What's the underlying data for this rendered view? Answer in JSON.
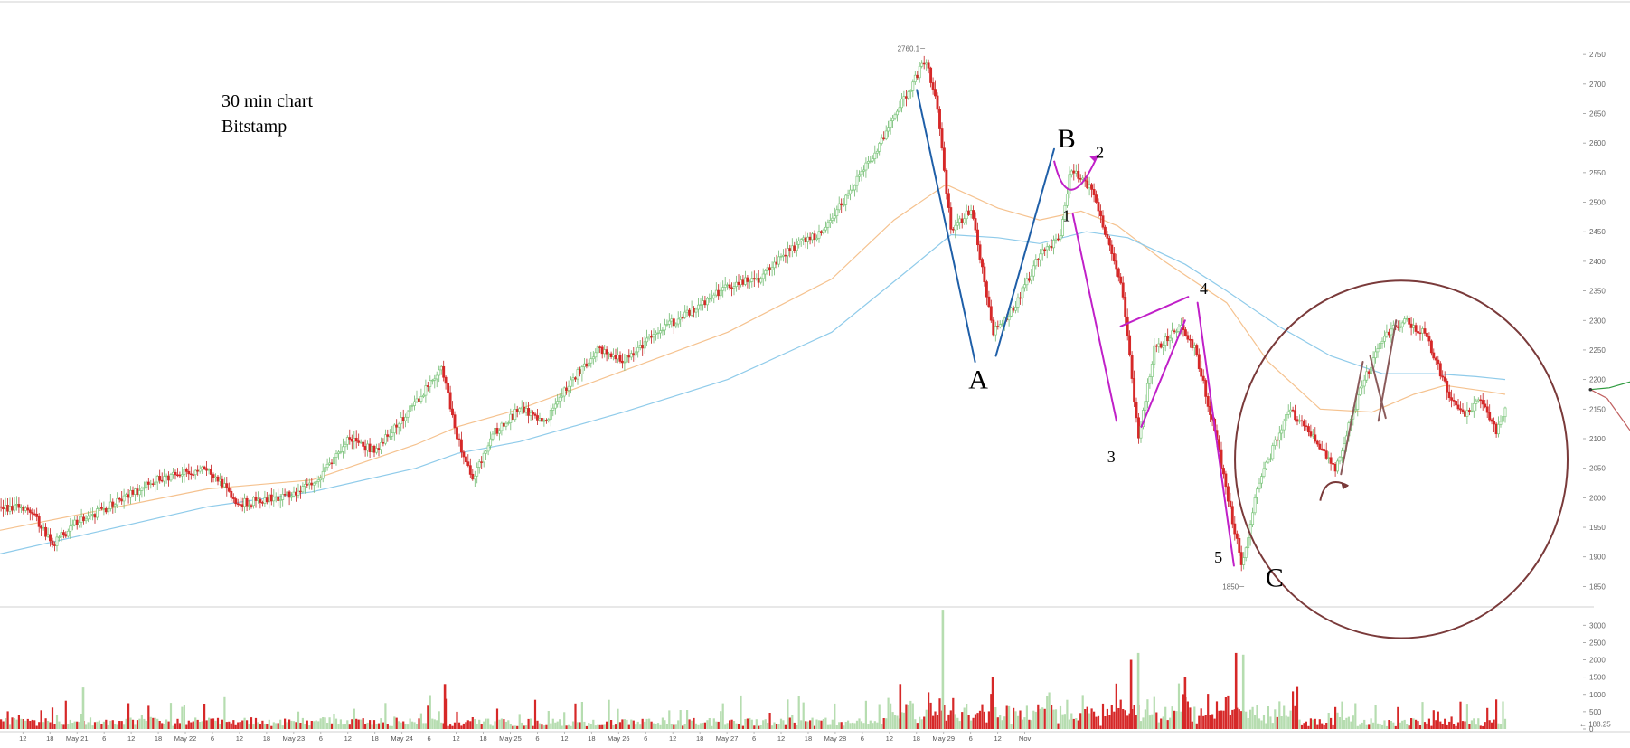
{
  "chart_data": {
    "type": "candlestick",
    "title_lines": [
      "30 min chart",
      "Bitstamp"
    ],
    "price_axis": {
      "ylim": [
        1820,
        2790
      ],
      "ticks": [
        1850,
        1900,
        1950,
        2000,
        2050,
        2100,
        2150,
        2200,
        2250,
        2300,
        2350,
        2400,
        2450,
        2500,
        2550,
        2600,
        2650,
        2700,
        2750
      ],
      "position": "right"
    },
    "volume_axis": {
      "ylim": [
        0,
        3400
      ],
      "ticks": [
        0,
        500,
        1000,
        1500,
        2000,
        2500,
        3000
      ],
      "current_value_label": "188.25"
    },
    "date_axis": {
      "labels": [
        "12",
        "18",
        "May 21",
        "6",
        "12",
        "18",
        "May 22",
        "6",
        "12",
        "18",
        "May 23",
        "6",
        "12",
        "18",
        "May 24",
        "6",
        "12",
        "18",
        "May 25",
        "6",
        "12",
        "18",
        "May 26",
        "6",
        "12",
        "18",
        "May 27",
        "6",
        "12",
        "18",
        "May 28",
        "6",
        "12",
        "18",
        "May 29",
        "6",
        "12",
        "Nov"
      ]
    },
    "price_path": [
      [
        0,
        1985
      ],
      [
        30,
        1980
      ],
      [
        50,
        1920
      ],
      [
        75,
        1960
      ],
      [
        110,
        1990
      ],
      [
        150,
        2030
      ],
      [
        200,
        2050
      ],
      [
        230,
        1990
      ],
      [
        265,
        2000
      ],
      [
        300,
        2020
      ],
      [
        335,
        2100
      ],
      [
        360,
        2080
      ],
      [
        390,
        2140
      ],
      [
        425,
        2220
      ],
      [
        440,
        2100
      ],
      [
        455,
        2030
      ],
      [
        475,
        2110
      ],
      [
        500,
        2150
      ],
      [
        525,
        2130
      ],
      [
        550,
        2200
      ],
      [
        575,
        2250
      ],
      [
        600,
        2230
      ],
      [
        630,
        2280
      ],
      [
        660,
        2310
      ],
      [
        700,
        2360
      ],
      [
        730,
        2370
      ],
      [
        760,
        2420
      ],
      [
        790,
        2450
      ],
      [
        815,
        2510
      ],
      [
        840,
        2580
      ],
      [
        865,
        2660
      ],
      [
        890,
        2740
      ],
      [
        900,
        2680
      ],
      [
        915,
        2450
      ],
      [
        935,
        2490
      ],
      [
        955,
        2280
      ],
      [
        975,
        2320
      ],
      [
        1000,
        2410
      ],
      [
        1020,
        2440
      ],
      [
        1030,
        2560
      ],
      [
        1050,
        2520
      ],
      [
        1065,
        2440
      ],
      [
        1080,
        2350
      ],
      [
        1095,
        2100
      ],
      [
        1110,
        2250
      ],
      [
        1135,
        2290
      ],
      [
        1150,
        2250
      ],
      [
        1170,
        2100
      ],
      [
        1195,
        1880
      ],
      [
        1210,
        2020
      ],
      [
        1240,
        2150
      ],
      [
        1265,
        2100
      ],
      [
        1285,
        2050
      ],
      [
        1310,
        2190
      ],
      [
        1330,
        2270
      ],
      [
        1350,
        2300
      ],
      [
        1370,
        2280
      ],
      [
        1395,
        2170
      ],
      [
        1410,
        2140
      ],
      [
        1425,
        2170
      ],
      [
        1440,
        2110
      ],
      [
        1448,
        2150
      ]
    ],
    "moving_averages": [
      {
        "color": "#f5c28f",
        "points": [
          [
            0,
            1945
          ],
          [
            100,
            1980
          ],
          [
            200,
            2015
          ],
          [
            300,
            2030
          ],
          [
            400,
            2090
          ],
          [
            440,
            2120
          ],
          [
            500,
            2150
          ],
          [
            600,
            2215
          ],
          [
            700,
            2280
          ],
          [
            800,
            2370
          ],
          [
            860,
            2470
          ],
          [
            910,
            2530
          ],
          [
            960,
            2490
          ],
          [
            1000,
            2470
          ],
          [
            1040,
            2485
          ],
          [
            1075,
            2460
          ],
          [
            1120,
            2400
          ],
          [
            1180,
            2330
          ],
          [
            1220,
            2230
          ],
          [
            1270,
            2150
          ],
          [
            1320,
            2145
          ],
          [
            1360,
            2175
          ],
          [
            1390,
            2190
          ],
          [
            1430,
            2180
          ],
          [
            1448,
            2175
          ]
        ]
      },
      {
        "color": "#8fcbea",
        "points": [
          [
            0,
            1905
          ],
          [
            100,
            1945
          ],
          [
            200,
            1985
          ],
          [
            300,
            2010
          ],
          [
            400,
            2050
          ],
          [
            440,
            2075
          ],
          [
            500,
            2095
          ],
          [
            600,
            2145
          ],
          [
            700,
            2200
          ],
          [
            800,
            2280
          ],
          [
            870,
            2380
          ],
          [
            915,
            2445
          ],
          [
            960,
            2440
          ],
          [
            1000,
            2430
          ],
          [
            1045,
            2450
          ],
          [
            1085,
            2440
          ],
          [
            1140,
            2395
          ],
          [
            1180,
            2350
          ],
          [
            1230,
            2290
          ],
          [
            1280,
            2240
          ],
          [
            1330,
            2210
          ],
          [
            1380,
            2210
          ],
          [
            1420,
            2205
          ],
          [
            1448,
            2200
          ]
        ]
      }
    ],
    "price_markers": [
      {
        "label": "2760.1",
        "x": 888,
        "price": 2760
      },
      {
        "label": "1850",
        "x": 1195,
        "price": 1850
      }
    ],
    "wave_labels": [
      {
        "text": "A",
        "x": 941,
        "price": 2185,
        "size": 30
      },
      {
        "text": "B",
        "x": 1026,
        "price": 2593,
        "size": 30
      },
      {
        "text": "C",
        "x": 1226,
        "price": 1850,
        "size": 30
      },
      {
        "text": "1",
        "x": 1026,
        "price": 2468,
        "size": 18
      },
      {
        "text": "2",
        "x": 1058,
        "price": 2575,
        "size": 18
      },
      {
        "text": "3",
        "x": 1069,
        "price": 2060,
        "size": 18
      },
      {
        "text": "4",
        "x": 1158,
        "price": 2345,
        "size": 18
      },
      {
        "text": "5",
        "x": 1172,
        "price": 1890,
        "size": 18
      }
    ],
    "trend_lines": [
      {
        "color": "#1f5fa8",
        "points": [
          [
            882,
            2690
          ],
          [
            938,
            2230
          ]
        ]
      },
      {
        "color": "#1f5fa8",
        "points": [
          [
            958,
            2240
          ],
          [
            1014,
            2590
          ]
        ]
      },
      {
        "color": "#c020c8",
        "points": [
          [
            1032,
            2480
          ],
          [
            1074,
            2130
          ]
        ]
      },
      {
        "color": "#c020c8",
        "points": [
          [
            1078,
            2290
          ],
          [
            1143,
            2340
          ]
        ]
      },
      {
        "color": "#c020c8",
        "points": [
          [
            1098,
            2120
          ],
          [
            1140,
            2300
          ]
        ]
      },
      {
        "color": "#c020c8",
        "points": [
          [
            1152,
            2330
          ],
          [
            1187,
            1885
          ]
        ]
      },
      {
        "color": "#8a5a5a",
        "points": [
          [
            1290,
            2040
          ],
          [
            1311,
            2230
          ]
        ]
      },
      {
        "color": "#8a5a5a",
        "points": [
          [
            1318,
            2240
          ],
          [
            1333,
            2135
          ]
        ]
      },
      {
        "color": "#8a5a5a",
        "points": [
          [
            1326,
            2130
          ],
          [
            1343,
            2300
          ]
        ]
      }
    ],
    "wave_curve": {
      "color": "#c020c8",
      "points": [
        [
          1014,
          2570
        ],
        [
          1028,
          2495
        ],
        [
          1056,
          2580
        ]
      ]
    },
    "circle_annotation": {
      "color": "#7a3a3a",
      "cx": 1348,
      "price_cy": 2065,
      "rx": 160,
      "ry_price": 240
    },
    "curved_arrow": {
      "color": "#7a3a3a",
      "from": [
        1270,
        1995
      ],
      "to": [
        1297,
        2020
      ]
    },
    "right_edge_markers": [
      {
        "color": "#2e9a3e",
        "points": [
          [
            1530,
            2183
          ],
          [
            1548,
            2186
          ],
          [
            1568,
            2196
          ]
        ]
      },
      {
        "color": "#c06060",
        "points": [
          [
            1530,
            2183
          ],
          [
            1546,
            2168
          ],
          [
            1568,
            2114
          ]
        ]
      }
    ],
    "volume_spikes": [
      {
        "x": 907,
        "value": 3450,
        "up": true
      },
      {
        "x": 1095,
        "value": 2200,
        "up": true
      },
      {
        "x": 1189,
        "value": 2200,
        "up": false
      },
      {
        "x": 1196,
        "value": 2150,
        "up": true
      },
      {
        "x": 866,
        "value": 1300,
        "up": false
      },
      {
        "x": 428,
        "value": 1300,
        "up": false
      },
      {
        "x": 1088,
        "value": 2000,
        "up": false
      },
      {
        "x": 1140,
        "value": 1500,
        "up": false
      },
      {
        "x": 955,
        "value": 1500,
        "up": false
      },
      {
        "x": 80,
        "value": 1200,
        "up": true
      }
    ]
  }
}
